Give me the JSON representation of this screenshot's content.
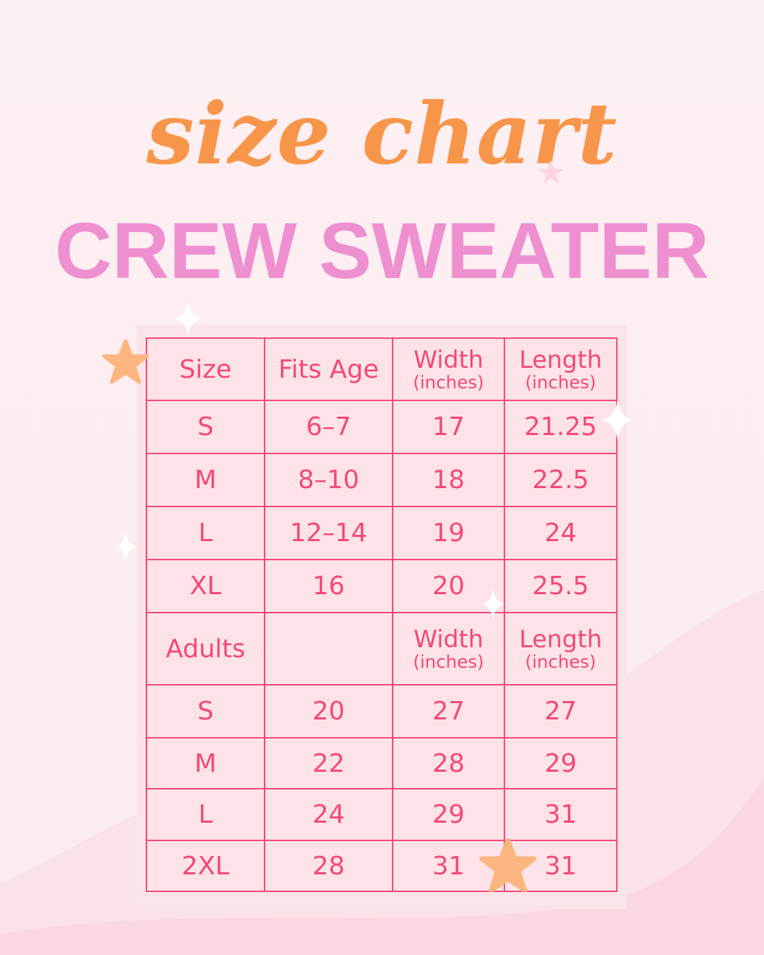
{
  "title_script": "size chart",
  "title_main": "CREW SWEATER",
  "colors": {
    "script": "#f7964a",
    "headline": "#ee90d0",
    "table": "#f4487a",
    "background": "#fdf0f2"
  },
  "kids_header": {
    "size": "Size",
    "age": "Fits Age",
    "width": "Width",
    "width_unit": "(inches)",
    "length": "Length",
    "length_unit": "(inches)"
  },
  "kids_rows": [
    {
      "size": "S",
      "age": "6–7",
      "width": "17",
      "length": "21.25"
    },
    {
      "size": "M",
      "age": "8–10",
      "width": "18",
      "length": "22.5"
    },
    {
      "size": "L",
      "age": "12–14",
      "width": "19",
      "length": "24"
    },
    {
      "size": "XL",
      "age": "16",
      "width": "20",
      "length": "25.5"
    }
  ],
  "adult_header": {
    "size": "Adults",
    "age": "",
    "width": "Width",
    "width_unit": "(inches)",
    "length": "Length",
    "length_unit": "(inches)"
  },
  "adult_rows": [
    {
      "size": "S",
      "age": "20",
      "width": "27",
      "length": "27"
    },
    {
      "size": "M",
      "age": "22",
      "width": "28",
      "length": "29"
    },
    {
      "size": "L",
      "age": "24",
      "width": "29",
      "length": "31"
    },
    {
      "size": "2XL",
      "age": "28",
      "width": "31",
      "length": "31"
    }
  ]
}
